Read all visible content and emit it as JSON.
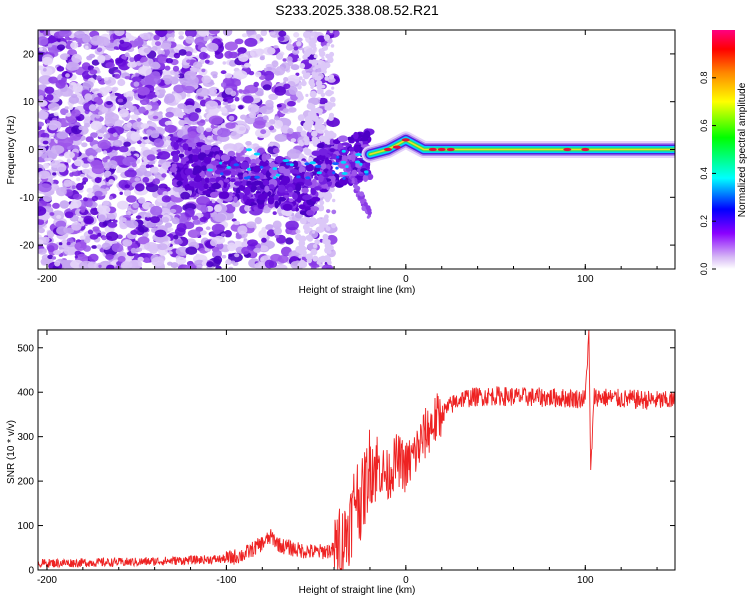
{
  "figure_title": "S233.2025.338.08.52.R21",
  "colors": {
    "scatter": "#8a22e0",
    "scatter_dark": "#5a00c8",
    "line_center": "#e0103a",
    "snr_line": "#ee2222",
    "colorbar_stops": [
      "#ffffff",
      "#8a00ff",
      "#0000ff",
      "#00ffff",
      "#00ff00",
      "#ffff00",
      "#ff8800",
      "#ff0000",
      "#ff0080"
    ]
  },
  "chart_data": [
    {
      "type": "heatmap",
      "title": "",
      "xlabel": "Height of straight line (km)",
      "ylabel": "Frequency (Hz)",
      "xlim": [
        -205,
        150
      ],
      "ylim": [
        -25,
        25
      ],
      "xticks": [
        -200,
        -100,
        0,
        100
      ],
      "yticks": [
        -20,
        -10,
        0,
        10,
        20
      ],
      "colorbar": {
        "label": "Normalized spectral amplitude",
        "range": [
          0,
          1
        ],
        "ticks": [
          0.0,
          0.2,
          0.4,
          0.6,
          0.8
        ]
      },
      "trace": {
        "description_points_x": [
          -20,
          -10,
          0,
          5,
          10,
          20,
          50,
          100,
          150
        ],
        "description_points_y": [
          -1,
          0,
          2,
          1,
          0,
          0,
          0,
          0,
          0
        ]
      }
    },
    {
      "type": "line",
      "title": "",
      "xlabel": "Height of straight line (km)",
      "ylabel": "SNR (10 * v/v)",
      "xlim": [
        -205,
        150
      ],
      "ylim": [
        0,
        540
      ],
      "xticks": [
        -200,
        -100,
        0,
        100
      ],
      "yticks": [
        0,
        100,
        200,
        300,
        400,
        500
      ],
      "series": [
        {
          "name": "SNR",
          "x": [
            -205,
            -150,
            -100,
            -90,
            -80,
            -75,
            -70,
            -60,
            -50,
            -40,
            -35,
            -30,
            -28,
            -25,
            -22,
            -20,
            -15,
            -10,
            -5,
            0,
            5,
            10,
            15,
            20,
            25,
            30,
            40,
            50,
            60,
            80,
            100,
            102,
            103,
            105,
            120,
            150
          ],
          "values": [
            15,
            18,
            25,
            35,
            60,
            75,
            55,
            45,
            40,
            45,
            60,
            120,
            180,
            150,
            200,
            240,
            230,
            210,
            250,
            230,
            260,
            300,
            330,
            350,
            370,
            385,
            390,
            392,
            390,
            388,
            385,
            540,
            225,
            390,
            385,
            380
          ]
        }
      ]
    }
  ]
}
